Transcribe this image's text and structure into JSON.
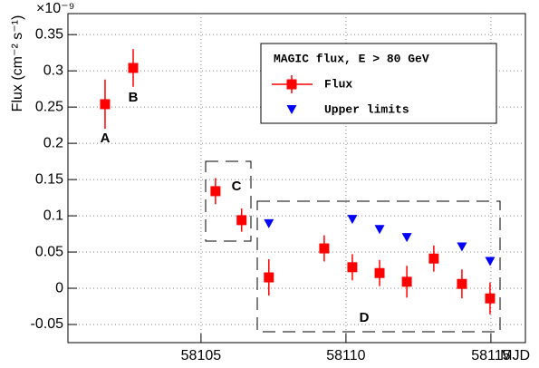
{
  "chart_data": {
    "type": "scatter",
    "x_label": "MJD",
    "y_label": "Flux (cm⁻² s⁻¹)",
    "axis_multiplier": "×10⁻⁹",
    "legend_title": "MAGIC flux, E > 80 GeV",
    "xlim": [
      58100.41,
      58116.19
    ],
    "xticks": [
      58105,
      58110,
      58115
    ],
    "ylim": [
      -0.075,
      0.379
    ],
    "yticks": [
      -0.05,
      0,
      0.05,
      0.1,
      0.15,
      0.2,
      0.25,
      0.3,
      0.35
    ],
    "grid": true,
    "annotations": [
      "A",
      "B",
      "C",
      "D"
    ],
    "series": [
      {
        "name": "Flux",
        "color": "#ff0000",
        "marker": "square",
        "x": [
          58101.69,
          58102.66,
          58105.5,
          58106.4,
          58107.34,
          58109.25,
          58110.22,
          58111.16,
          58112.1,
          58113.03,
          58114.0,
          58114.97
        ],
        "values": [
          0.254,
          0.304,
          0.134,
          0.094,
          0.015,
          0.055,
          0.029,
          0.021,
          0.009,
          0.041,
          0.006,
          -0.014
        ],
        "errors": [
          0.034,
          0.026,
          0.018,
          0.016,
          0.025,
          0.018,
          0.018,
          0.018,
          0.022,
          0.018,
          0.02,
          0.022
        ]
      },
      {
        "name": "Upper limits",
        "color": "#0000ff",
        "marker": "triangle-down",
        "x": [
          58107.34,
          58110.22,
          58111.16,
          58112.1,
          58114.0,
          58114.97
        ],
        "values": [
          0.089,
          0.095,
          0.081,
          0.07,
          0.057,
          0.037
        ]
      }
    ]
  }
}
